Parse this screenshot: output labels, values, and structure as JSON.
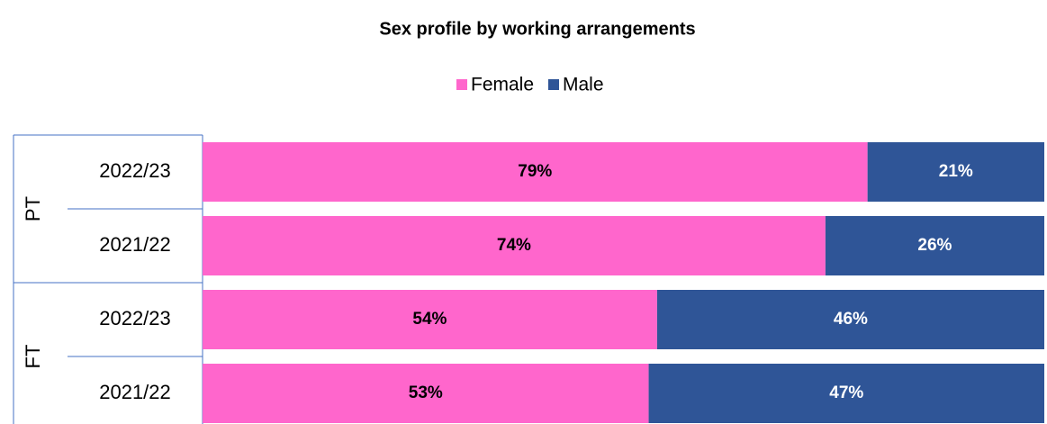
{
  "chart_data": {
    "type": "stacked-bar-horizontal",
    "title": "Sex profile by working arrangements",
    "groups": [
      {
        "name": "PT",
        "categories": [
          "2022/23",
          "2021/22"
        ]
      },
      {
        "name": "FT",
        "categories": [
          "2022/23",
          "2021/22"
        ]
      }
    ],
    "series": [
      {
        "name": "Female",
        "color": "#ff66cc",
        "label_color": "#000000",
        "values": [
          79,
          74,
          54,
          53
        ],
        "value_labels": [
          "79%",
          "74%",
          "54%",
          "53%"
        ]
      },
      {
        "name": "Male",
        "color": "#2f5597",
        "label_color": "#ffffff",
        "values": [
          21,
          26,
          46,
          47
        ],
        "value_labels": [
          "21%",
          "26%",
          "46%",
          "47%"
        ]
      }
    ],
    "xlim": [
      0,
      100
    ]
  }
}
